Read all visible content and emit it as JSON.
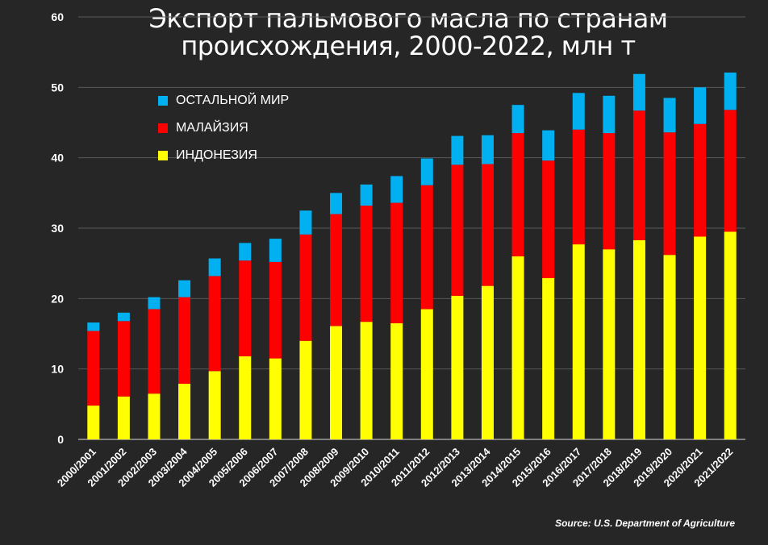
{
  "chart_data": {
    "type": "bar",
    "stacked": true,
    "title_line1": "Экспорт пальмового масла по странам",
    "title_line2": "происхождения, 2000-2022, млн т",
    "xlabel": "",
    "ylabel": "",
    "ylim": [
      0,
      60
    ],
    "yticks": [
      0,
      10,
      20,
      30,
      40,
      50,
      60
    ],
    "grid": true,
    "legend_placement": "top-left",
    "categories": [
      "2000/2001",
      "2001/2002",
      "2002/2003",
      "2003/2004",
      "2004/2005",
      "2005/2006",
      "2006/2007",
      "2007/2008",
      "2008/2009",
      "2009/2010",
      "2010/2011",
      "2011/2012",
      "2012/2013",
      "2013/2014",
      "2014/2015",
      "2015/2016",
      "2016/2017",
      "2017/2018",
      "2018/2019",
      "2019/2020",
      "2020/2021",
      "2021/2022"
    ],
    "series": [
      {
        "name": "ИНДОНЕЗИЯ",
        "color": "#ffff00",
        "values": [
          4.8,
          6.1,
          6.5,
          7.9,
          9.7,
          11.8,
          11.5,
          14.0,
          16.1,
          16.7,
          16.5,
          18.5,
          20.4,
          21.8,
          26.0,
          22.9,
          27.7,
          27.0,
          28.3,
          26.2,
          28.8,
          29.5
        ]
      },
      {
        "name": "МАЛАЙЗИЯ",
        "color": "#ff0000",
        "values": [
          10.6,
          10.7,
          12.0,
          12.3,
          13.5,
          13.6,
          13.7,
          15.1,
          15.9,
          16.5,
          17.1,
          17.6,
          18.6,
          17.3,
          17.5,
          16.7,
          16.3,
          16.5,
          18.4,
          17.4,
          16.0,
          17.3
        ]
      },
      {
        "name": "ОСТАЛЬНОЙ МИР",
        "color": "#00b0f0",
        "values": [
          1.2,
          1.2,
          1.7,
          2.4,
          2.5,
          2.5,
          3.3,
          3.4,
          3.0,
          3.0,
          3.8,
          3.8,
          4.1,
          4.1,
          4.0,
          4.3,
          5.2,
          5.3,
          5.2,
          4.9,
          5.2,
          5.3
        ]
      }
    ],
    "legend": [
      "ОСТАЛЬНОЙ МИР",
      "МАЛАЙЗИЯ",
      "ИНДОНЕЗИЯ"
    ],
    "source": "Source: U.S. Department of Agriculture"
  },
  "colors": {
    "background": "#262626",
    "grid": "#595959",
    "text": "#ffffff"
  }
}
